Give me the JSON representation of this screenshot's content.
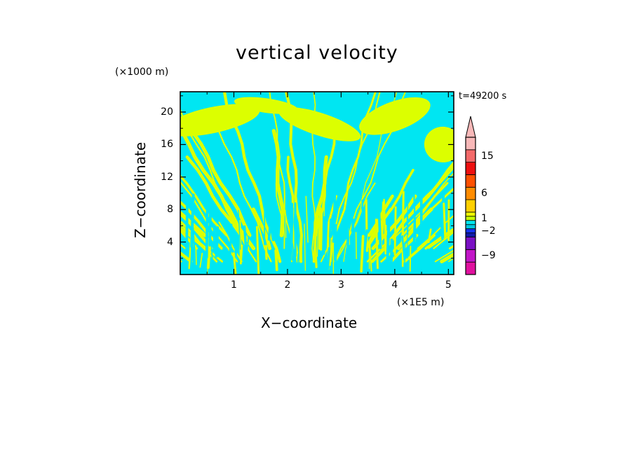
{
  "chart_data": {
    "type": "heatmap",
    "title": "vertical velocity",
    "xlabel": "X−coordinate",
    "ylabel": "Z−coordinate",
    "x_units_label": "(×1E5 m)",
    "z_units_label": "(×1000 m)",
    "time_label": "t=49200 s",
    "xlim": [
      0,
      5.1
    ],
    "ylim": [
      0,
      22.5
    ],
    "x_ticks": [
      {
        "value": 1,
        "label": "1"
      },
      {
        "value": 2,
        "label": "2"
      },
      {
        "value": 3,
        "label": "3"
      },
      {
        "value": 4,
        "label": "4"
      },
      {
        "value": 5,
        "label": "5"
      }
    ],
    "y_ticks": [
      {
        "value": 4,
        "label": "4"
      },
      {
        "value": 8,
        "label": "8"
      },
      {
        "value": 12,
        "label": "12"
      },
      {
        "value": 16,
        "label": "16"
      },
      {
        "value": 20,
        "label": "20"
      }
    ],
    "colorbar": {
      "range": [
        -12,
        21
      ],
      "levels": [
        -12,
        -9,
        -6,
        -3,
        -2,
        -1,
        0,
        1,
        2,
        3,
        6,
        9,
        12,
        15,
        18
      ],
      "colors": [
        "#e0119f",
        "#c216c8",
        "#7a10c4",
        "#101aa8",
        "#1432f0",
        "#00c8e0",
        "#00e6f0",
        "#c8ff00",
        "#f0ff00",
        "#ffd000",
        "#ff8c00",
        "#ff5000",
        "#ee1010",
        "#f46a6a",
        "#f8b8b8"
      ],
      "labels": [
        {
          "value": -9,
          "label": "−9"
        },
        {
          "value": -2,
          "label": "−2"
        },
        {
          "value": 1,
          "label": "1"
        },
        {
          "value": 6,
          "label": "6"
        },
        {
          "value": 15,
          "label": "15"
        }
      ]
    },
    "field_description_colors": {
      "updraft": "#dcff00",
      "downdraft": "#00e6f2",
      "strong_updraft": "#ffa000",
      "strong_downdraft": "#1432f0"
    }
  }
}
